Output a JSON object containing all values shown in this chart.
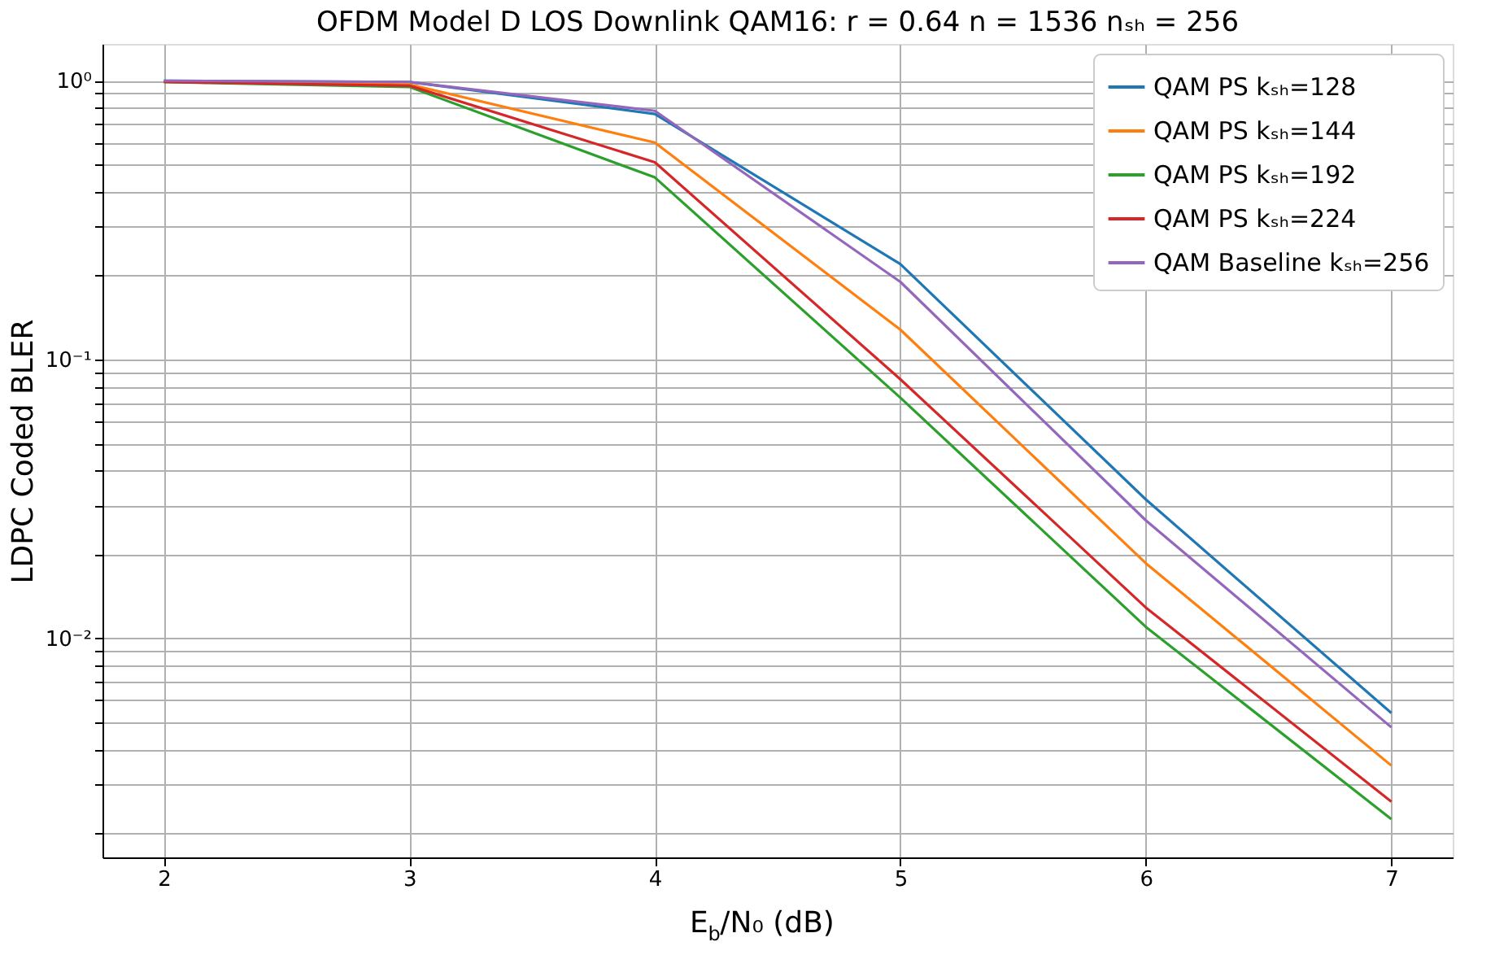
{
  "chart_data": {
    "type": "line",
    "title": "OFDM Model D LOS Downlink QAM16: r = 0.64 n = 1536 nₛₕ =  256",
    "xlabel": "E$_{b}$/N₀ (dB)",
    "ylabel": "LDPC Coded BLER",
    "x": [
      2,
      3,
      4,
      5,
      6,
      7
    ],
    "series": [
      {
        "name": "QAM PS kₛₕ=128",
        "color": "#1f77b4",
        "values": [
          1.0,
          0.99,
          0.76,
          0.22,
          0.0315,
          0.0054
        ]
      },
      {
        "name": "QAM PS kₛₕ=144",
        "color": "#ff7f0e",
        "values": [
          0.99,
          0.97,
          0.6,
          0.128,
          0.0186,
          0.0035
        ]
      },
      {
        "name": "QAM PS kₛₕ=192",
        "color": "#2ca02c",
        "values": [
          0.99,
          0.95,
          0.45,
          0.073,
          0.011,
          0.00225
        ]
      },
      {
        "name": "QAM PS kₛₕ=224",
        "color": "#d62728",
        "values": [
          0.99,
          0.96,
          0.51,
          0.085,
          0.0129,
          0.0026
        ]
      },
      {
        "name": "QAM Baseline kₛₕ=256",
        "color": "#9467bd",
        "values": [
          1.0,
          0.99,
          0.78,
          0.19,
          0.0265,
          0.0048
        ]
      }
    ],
    "xlim": [
      1.75,
      7.25
    ],
    "xticks": [
      2,
      3,
      4,
      5,
      6,
      7
    ],
    "ylim": [
      0.00164,
      1.355
    ],
    "log": true,
    "yticks": [
      {
        "value": 0.002,
        "label": null
      },
      {
        "value": 0.003,
        "label": null
      },
      {
        "value": 0.004,
        "label": null
      },
      {
        "value": 0.005,
        "label": null
      },
      {
        "value": 0.006,
        "label": null
      },
      {
        "value": 0.007,
        "label": null
      },
      {
        "value": 0.008,
        "label": null
      },
      {
        "value": 0.009,
        "label": null
      },
      {
        "value": 0.01,
        "label": "10⁻²"
      },
      {
        "value": 0.02,
        "label": null
      },
      {
        "value": 0.03,
        "label": null
      },
      {
        "value": 0.04,
        "label": null
      },
      {
        "value": 0.05,
        "label": null
      },
      {
        "value": 0.06,
        "label": null
      },
      {
        "value": 0.07,
        "label": null
      },
      {
        "value": 0.08,
        "label": null
      },
      {
        "value": 0.09,
        "label": null
      },
      {
        "value": 0.1,
        "label": "10⁻¹"
      },
      {
        "value": 0.2,
        "label": null
      },
      {
        "value": 0.3,
        "label": null
      },
      {
        "value": 0.4,
        "label": null
      },
      {
        "value": 0.5,
        "label": null
      },
      {
        "value": 0.6,
        "label": null
      },
      {
        "value": 0.7,
        "label": null
      },
      {
        "value": 0.8,
        "label": null
      },
      {
        "value": 0.9,
        "label": null
      },
      {
        "value": 1,
        "label": "10⁰"
      }
    ],
    "grid": true,
    "legend": "top right",
    "marker": "none",
    "line_style": "solid"
  }
}
